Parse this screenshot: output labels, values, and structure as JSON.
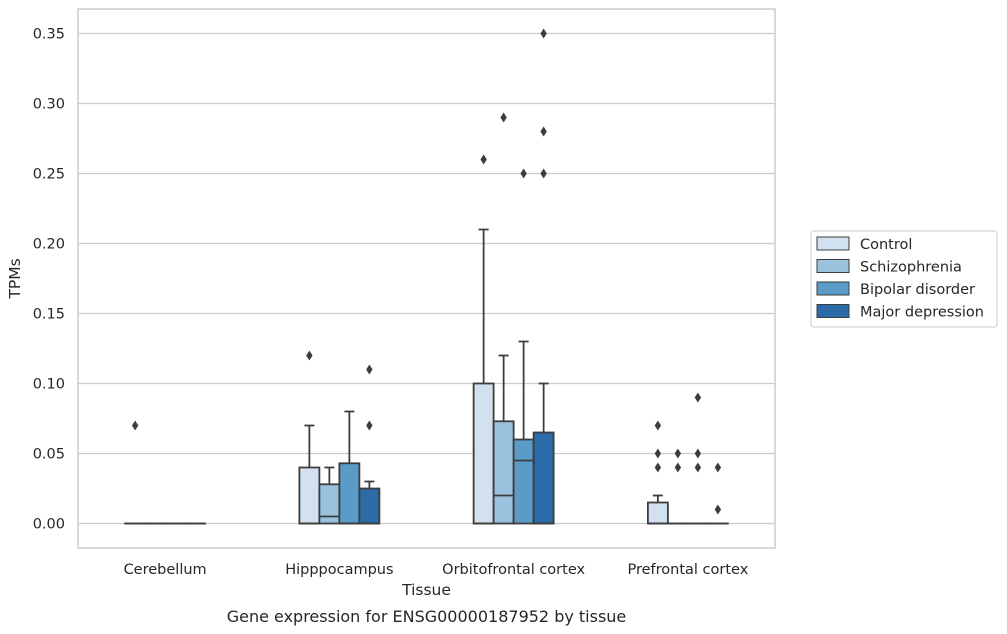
{
  "chart_data": {
    "type": "box",
    "caption": "Gene expression for ENSG00000187952 by tissue",
    "xlabel": "Tissue",
    "ylabel": "TPMs",
    "ylim": [
      -0.0175,
      0.3675
    ],
    "yticks": [
      "0.00",
      "0.05",
      "0.10",
      "0.15",
      "0.20",
      "0.25",
      "0.30",
      "0.35"
    ],
    "grid": "horizontal",
    "legend_position": "right",
    "categories": [
      "Cerebellum",
      "Hipppocampus",
      "Orbitofrontal cortex",
      "Prefrontal cortex"
    ],
    "series": [
      {
        "name": "Control",
        "color": "#d1e1f0",
        "boxes": [
          {
            "q1": 0,
            "median": 0,
            "q3": 0,
            "whislo": 0,
            "whishi": 0,
            "fliers": [
              0.07
            ]
          },
          {
            "q1": 0,
            "median": 0,
            "q3": 0.04,
            "whislo": 0,
            "whishi": 0.07,
            "fliers": [
              0.12
            ]
          },
          {
            "q1": 0,
            "median": 0,
            "q3": 0.1,
            "whislo": 0,
            "whishi": 0.21,
            "fliers": [
              0.26
            ]
          },
          {
            "q1": 0,
            "median": 0,
            "q3": 0.015,
            "whislo": 0,
            "whishi": 0.02,
            "fliers": [
              0.04,
              0.05,
              0.07
            ]
          }
        ]
      },
      {
        "name": "Schizophrenia",
        "color": "#9ac2dc",
        "boxes": [
          {
            "q1": 0,
            "median": 0,
            "q3": 0,
            "whislo": 0,
            "whishi": 0,
            "fliers": []
          },
          {
            "q1": 0,
            "median": 0.005,
            "q3": 0.028,
            "whislo": 0,
            "whishi": 0.04,
            "fliers": []
          },
          {
            "q1": 0,
            "median": 0.02,
            "q3": 0.073,
            "whislo": 0,
            "whishi": 0.12,
            "fliers": [
              0.29
            ]
          },
          {
            "q1": 0,
            "median": 0,
            "q3": 0,
            "whislo": 0,
            "whishi": 0,
            "fliers": [
              0.04,
              0.05
            ]
          }
        ]
      },
      {
        "name": "Bipolar disorder",
        "color": "#5a9bc8",
        "boxes": [
          {
            "q1": 0,
            "median": 0,
            "q3": 0,
            "whislo": 0,
            "whishi": 0,
            "fliers": []
          },
          {
            "q1": 0,
            "median": 0,
            "q3": 0.043,
            "whislo": 0,
            "whishi": 0.08,
            "fliers": []
          },
          {
            "q1": 0,
            "median": 0.045,
            "q3": 0.06,
            "whislo": 0,
            "whishi": 0.13,
            "fliers": [
              0.25
            ]
          },
          {
            "q1": 0,
            "median": 0,
            "q3": 0,
            "whislo": 0,
            "whishi": 0,
            "fliers": [
              0.04,
              0.05,
              0.09
            ]
          }
        ]
      },
      {
        "name": "Major depression",
        "color": "#2a6ba8",
        "boxes": [
          {
            "q1": 0,
            "median": 0,
            "q3": 0,
            "whislo": 0,
            "whishi": 0,
            "fliers": []
          },
          {
            "q1": 0,
            "median": 0,
            "q3": 0.025,
            "whislo": 0,
            "whishi": 0.03,
            "fliers": [
              0.07,
              0.11
            ]
          },
          {
            "q1": 0,
            "median": 0,
            "q3": 0.065,
            "whislo": 0,
            "whishi": 0.1,
            "fliers": [
              0.25,
              0.28,
              0.35
            ]
          },
          {
            "q1": 0,
            "median": 0,
            "q3": 0,
            "whislo": 0,
            "whishi": 0,
            "fliers": [
              0.01,
              0.04
            ]
          }
        ]
      }
    ]
  }
}
